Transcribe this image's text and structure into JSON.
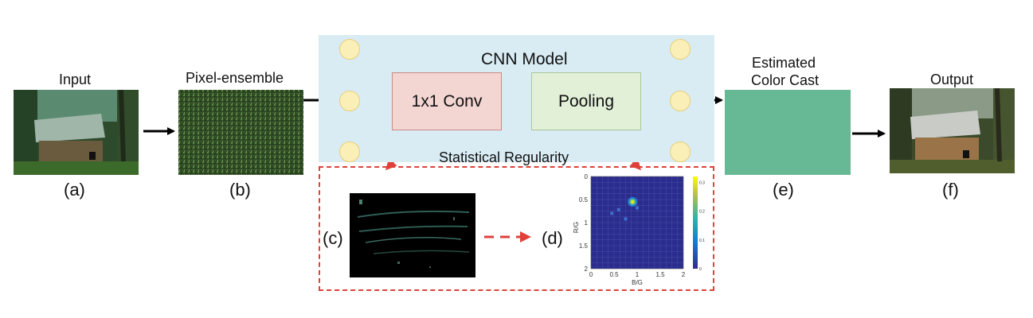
{
  "labels": {
    "input": "Input",
    "pixel_ensemble": "Pixel-ensemble",
    "cnn_model": "CNN Model",
    "conv": "1x1 Conv",
    "pooling": "Pooling",
    "estimated_line1": "Estimated",
    "estimated_line2": "Color Cast",
    "output": "Output",
    "statistical_regularity": "Statistical Regularity"
  },
  "subfigure_tags": {
    "a": "(a)",
    "b": "(b)",
    "c": "(c)",
    "d": "(d)",
    "e": "(e)",
    "f": "(f)"
  },
  "chart_data": {
    "type": "heatmap",
    "xlabel": "B/G",
    "ylabel": "R/G",
    "xlim": [
      0,
      2
    ],
    "ylim": [
      0,
      2
    ],
    "xticks": [
      "0",
      "0.5",
      "1",
      "1.5",
      "2"
    ],
    "yticks": [
      "0",
      "0.5",
      "1",
      "1.5",
      "2"
    ],
    "colorbar_ticks": [
      "0",
      "0.1",
      "0.2",
      "0.3"
    ],
    "grid": true,
    "peak": {
      "x": 0.9,
      "y": 0.55,
      "value": 0.3
    },
    "colors": {
      "background": "#2b2d8e",
      "high": "#f9e10c"
    }
  },
  "colors": {
    "cnn_panel": "#d9ecf4",
    "node_fill": "#fbefb8",
    "conv_fill": "#f3d5d2",
    "pool_fill": "#e3f0d8",
    "color_cast": "#67b995",
    "dashed_red": "#e0403a"
  }
}
